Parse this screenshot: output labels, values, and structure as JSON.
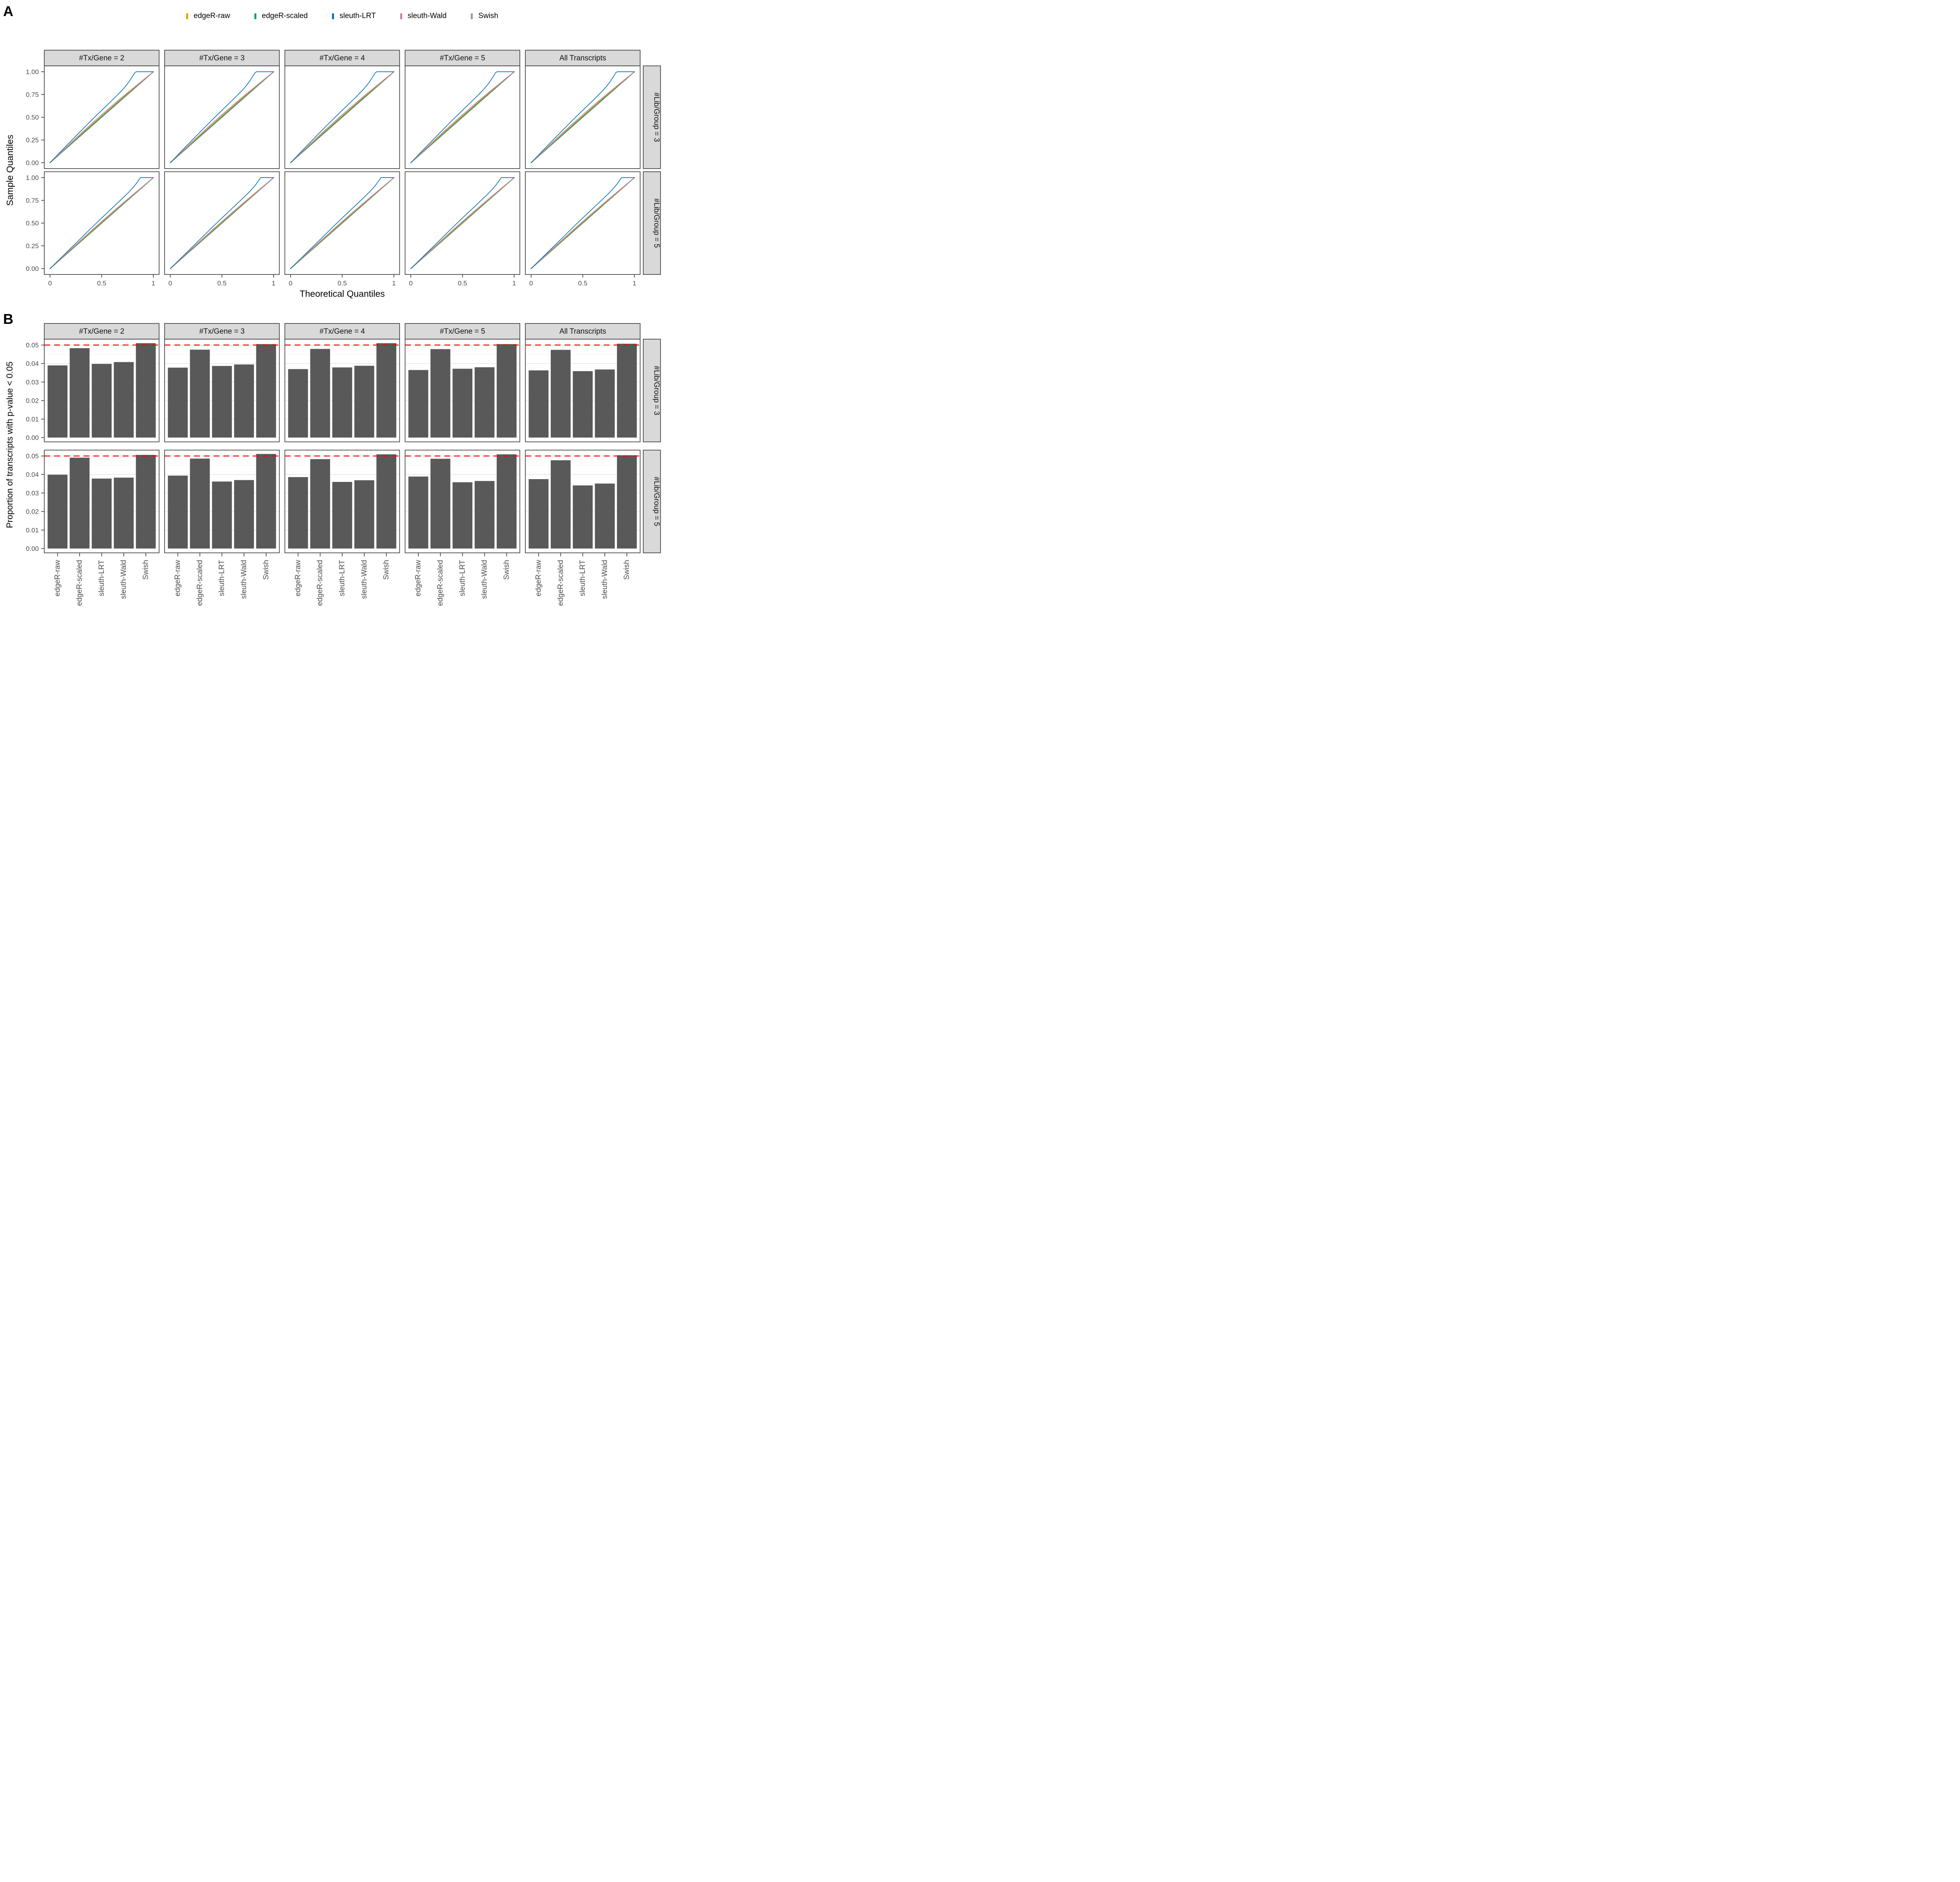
{
  "panel_a": {
    "letter": "A",
    "x_axis_title": "Theoretical Quantiles",
    "y_axis_title": "Sample Quantiles",
    "col_strips": [
      "#Tx/Gene = 2",
      "#Tx/Gene = 3",
      "#Tx/Gene = 4",
      "#Tx/Gene = 5",
      "All Transcripts"
    ],
    "row_strips": [
      "#Lib/Group = 3",
      "#Lib/Group = 5"
    ],
    "y_ticks": [
      "1.00",
      "0.75",
      "0.50",
      "0.25",
      "0.00"
    ],
    "x_ticks": [
      "0",
      "0.5",
      "1"
    ]
  },
  "panel_b": {
    "letter": "B",
    "y_axis_title": "Proportion of transcripts with p-value < 0.05",
    "col_strips": [
      "#Tx/Gene = 2",
      "#Tx/Gene = 3",
      "#Tx/Gene = 4",
      "#Tx/Gene = 5",
      "All Transcripts"
    ],
    "row_strips": [
      "#Lib/Group = 3",
      "#Lib/Group = 5"
    ],
    "y_ticks": [
      "0.05",
      "0.04",
      "0.03",
      "0.02",
      "0.01",
      "0.00"
    ],
    "methods": [
      "edgeR-raw",
      "edgeR-scaled",
      "sleuth-LRT",
      "sleuth-Wald",
      "Swish"
    ]
  },
  "legend": {
    "items": [
      {
        "label": "edgeR-raw",
        "color": "#E69F00"
      },
      {
        "label": "edgeR-scaled",
        "color": "#009E73"
      },
      {
        "label": "sleuth-LRT",
        "color": "#0072B2"
      },
      {
        "label": "sleuth-Wald",
        "color": "#CC79A7"
      },
      {
        "label": "Swish",
        "color": "#999999"
      }
    ]
  },
  "colors": {
    "bar_fill": "#595959",
    "reference_line": "#FF0000",
    "strip_bg": "#D9D9D9",
    "panel_border": "#333333",
    "tick_label": "#4D4D4D",
    "grid_major": "#E4E4E4",
    "grid_minor": "#F1F1F1"
  },
  "chart_data": [
    {
      "type": "line",
      "title": "QQ plots of p-value quantiles, faceted by #Tx/Gene (columns) and #Lib/Group (rows); curves nearly identical across columns",
      "xlabel": "Theoretical Quantiles",
      "ylabel": "Sample Quantiles",
      "xlim": [
        0,
        1
      ],
      "ylim": [
        0,
        1
      ],
      "x_tick_values": [
        0,
        0.5,
        1
      ],
      "y_tick_values": [
        0,
        0.25,
        0.5,
        0.75,
        1
      ],
      "grid": false,
      "legend_position": "top",
      "series_by_row": {
        "#Lib/Group = 3": [
          {
            "name": "Swish",
            "points": [
              [
                0,
                0
              ],
              [
                1,
                1
              ]
            ]
          },
          {
            "name": "edgeR-scaled",
            "points": [
              [
                0,
                0
              ],
              [
                0.1,
                0.1019
              ],
              [
                0.2,
                0.2035
              ],
              [
                0.3,
                0.3049
              ],
              [
                0.4,
                0.4057
              ],
              [
                0.5,
                0.506
              ],
              [
                0.6,
                0.6057
              ],
              [
                0.7,
                0.7049
              ],
              [
                0.8,
                0.8035
              ],
              [
                0.9,
                0.9019
              ],
              [
                1,
                1
              ]
            ]
          },
          {
            "name": "edgeR-raw",
            "points": [
              [
                0,
                0
              ],
              [
                0.1,
                0.105
              ],
              [
                0.2,
                0.2094
              ],
              [
                0.3,
                0.3129
              ],
              [
                0.4,
                0.4152
              ],
              [
                0.5,
                0.516
              ],
              [
                0.6,
                0.6152
              ],
              [
                0.7,
                0.7129
              ],
              [
                0.8,
                0.8094
              ],
              [
                0.9,
                0.905
              ],
              [
                1,
                1
              ]
            ]
          },
          {
            "name": "sleuth-Wald",
            "points": [
              [
                0,
                0
              ],
              [
                0.1,
                0.1087
              ],
              [
                0.2,
                0.2165
              ],
              [
                0.3,
                0.3227
              ],
              [
                0.4,
                0.4266
              ],
              [
                0.5,
                0.528
              ],
              [
                0.6,
                0.6266
              ],
              [
                0.7,
                0.7227
              ],
              [
                0.8,
                0.8165
              ],
              [
                0.9,
                0.9087
              ],
              [
                1,
                1
              ]
            ]
          },
          {
            "name": "sleuth-LRT",
            "points": [
              [
                0,
                0
              ],
              [
                0.05,
                0.058
              ],
              [
                0.1,
                0.118
              ],
              [
                0.15,
                0.177
              ],
              [
                0.2,
                0.235
              ],
              [
                0.25,
                0.293
              ],
              [
                0.3,
                0.351
              ],
              [
                0.35,
                0.408
              ],
              [
                0.4,
                0.465
              ],
              [
                0.45,
                0.521
              ],
              [
                0.5,
                0.576
              ],
              [
                0.55,
                0.631
              ],
              [
                0.6,
                0.686
              ],
              [
                0.65,
                0.742
              ],
              [
                0.7,
                0.8
              ],
              [
                0.74,
                0.853
              ],
              [
                0.77,
                0.9
              ],
              [
                0.8,
                0.953
              ],
              [
                0.82,
                0.99
              ],
              [
                0.835,
                1
              ],
              [
                1,
                1
              ]
            ]
          }
        ],
        "#Lib/Group = 5": [
          {
            "name": "Swish",
            "points": [
              [
                0,
                0
              ],
              [
                1,
                1
              ]
            ]
          },
          {
            "name": "edgeR-scaled",
            "points": [
              [
                0,
                0
              ],
              [
                0.1,
                0.1009
              ],
              [
                0.2,
                0.2018
              ],
              [
                0.3,
                0.3024
              ],
              [
                0.4,
                0.4029
              ],
              [
                0.5,
                0.503
              ],
              [
                0.6,
                0.6029
              ],
              [
                0.7,
                0.7024
              ],
              [
                0.8,
                0.8018
              ],
              [
                0.9,
                0.9009
              ],
              [
                1,
                1
              ]
            ]
          },
          {
            "name": "edgeR-raw",
            "points": [
              [
                0,
                0
              ],
              [
                0.1,
                0.1031
              ],
              [
                0.2,
                0.2059
              ],
              [
                0.3,
                0.3081
              ],
              [
                0.4,
                0.4095
              ],
              [
                0.5,
                0.51
              ],
              [
                0.6,
                0.6095
              ],
              [
                0.7,
                0.7081
              ],
              [
                0.8,
                0.8059
              ],
              [
                0.9,
                0.9031
              ],
              [
                1,
                1
              ]
            ]
          },
          {
            "name": "sleuth-Wald",
            "points": [
              [
                0,
                0
              ],
              [
                0.1,
                0.1056
              ],
              [
                0.2,
                0.2106
              ],
              [
                0.3,
                0.3146
              ],
              [
                0.4,
                0.4171
              ],
              [
                0.5,
                0.518
              ],
              [
                0.6,
                0.6171
              ],
              [
                0.7,
                0.7146
              ],
              [
                0.8,
                0.8106
              ],
              [
                0.9,
                0.9056
              ],
              [
                1,
                1
              ]
            ]
          },
          {
            "name": "sleuth-LRT",
            "points": [
              [
                0,
                0
              ],
              [
                0.1,
                0.111
              ],
              [
                0.2,
                0.223
              ],
              [
                0.3,
                0.335
              ],
              [
                0.4,
                0.447
              ],
              [
                0.5,
                0.556
              ],
              [
                0.6,
                0.664
              ],
              [
                0.65,
                0.717
              ],
              [
                0.7,
                0.771
              ],
              [
                0.75,
                0.826
              ],
              [
                0.8,
                0.886
              ],
              [
                0.83,
                0.927
              ],
              [
                0.86,
                0.975
              ],
              [
                0.875,
                1
              ],
              [
                1,
                1
              ]
            ]
          }
        ]
      }
    },
    {
      "type": "bar",
      "title": "Proportion of transcripts with p-value < 0.05, faceted by #Tx/Gene (columns) and #Lib/Group (rows)",
      "categories": [
        "edgeR-raw",
        "edgeR-scaled",
        "sleuth-LRT",
        "sleuth-Wald",
        "Swish"
      ],
      "ylabel": "Proportion of transcripts with p-value < 0.05",
      "ylim": [
        0,
        0.053
      ],
      "y_tick_values": [
        0,
        0.01,
        0.02,
        0.03,
        0.04,
        0.05
      ],
      "reference_line": 0.05,
      "grid": true,
      "facets": [
        {
          "row": "#Lib/Group = 3",
          "col": "#Tx/Gene = 2",
          "values": [
            0.039,
            0.0483,
            0.0398,
            0.0408,
            0.051
          ]
        },
        {
          "row": "#Lib/Group = 3",
          "col": "#Tx/Gene = 3",
          "values": [
            0.0378,
            0.0475,
            0.0387,
            0.0395,
            0.0505
          ]
        },
        {
          "row": "#Lib/Group = 3",
          "col": "#Tx/Gene = 4",
          "values": [
            0.037,
            0.0479,
            0.0379,
            0.0388,
            0.051
          ]
        },
        {
          "row": "#Lib/Group = 3",
          "col": "#Tx/Gene = 5",
          "values": [
            0.0365,
            0.0478,
            0.0372,
            0.038,
            0.0505
          ]
        },
        {
          "row": "#Lib/Group = 3",
          "col": "All Transcripts",
          "values": [
            0.0363,
            0.0474,
            0.0359,
            0.0368,
            0.0507
          ]
        },
        {
          "row": "#Lib/Group = 5",
          "col": "#Tx/Gene = 2",
          "values": [
            0.0399,
            0.0491,
            0.0378,
            0.0383,
            0.0506
          ]
        },
        {
          "row": "#Lib/Group = 5",
          "col": "#Tx/Gene = 3",
          "values": [
            0.0394,
            0.0486,
            0.0362,
            0.037,
            0.0511
          ]
        },
        {
          "row": "#Lib/Group = 5",
          "col": "#Tx/Gene = 4",
          "values": [
            0.0386,
            0.0483,
            0.036,
            0.0369,
            0.0509
          ]
        },
        {
          "row": "#Lib/Group = 5",
          "col": "#Tx/Gene = 5",
          "values": [
            0.0389,
            0.0485,
            0.0358,
            0.0365,
            0.0509
          ]
        },
        {
          "row": "#Lib/Group = 5",
          "col": "All Transcripts",
          "values": [
            0.0375,
            0.0477,
            0.0341,
            0.0351,
            0.0504
          ]
        }
      ]
    }
  ]
}
